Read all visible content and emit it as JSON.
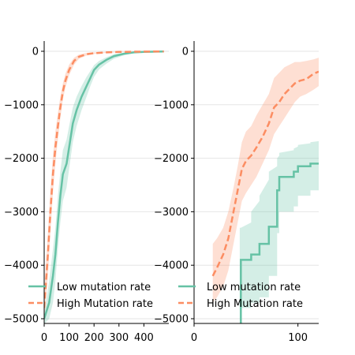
{
  "chart_data": [
    {
      "type": "line",
      "panel": "left",
      "xlim": [
        0,
        500
      ],
      "ylim": [
        -5100,
        150
      ],
      "xticks": [
        0,
        100,
        200,
        300,
        400
      ],
      "yticks": [
        0,
        -1000,
        -2000,
        -3000,
        -4000,
        -5000
      ],
      "xtick_labels": [
        "0",
        "100",
        "200",
        "300",
        "400"
      ],
      "ytick_labels": [
        "0",
        "−1000",
        "−2000",
        "−3000",
        "−4000",
        "−5000"
      ],
      "grid": true,
      "legend": {
        "position": "lower-left"
      },
      "series": [
        {
          "name": "Low mutation rate",
          "color": "#66c2a5",
          "style": "solid",
          "x": [
            0,
            20,
            35,
            45,
            55,
            65,
            75,
            90,
            100,
            115,
            130,
            150,
            170,
            185,
            200,
            220,
            250,
            280,
            320,
            360,
            400,
            480
          ],
          "y": [
            -5000,
            -4700,
            -4200,
            -3800,
            -3200,
            -2700,
            -2300,
            -2100,
            -1800,
            -1350,
            -1100,
            -850,
            -650,
            -500,
            -350,
            -250,
            -160,
            -90,
            -45,
            -20,
            -10,
            -5
          ],
          "band_lower": [
            -5100,
            -5000,
            -4700,
            -4300,
            -3700,
            -3200,
            -2800,
            -2550,
            -2200,
            -1700,
            -1400,
            -1100,
            -850,
            -650,
            -480,
            -340,
            -230,
            -140,
            -75,
            -35,
            -18,
            -10
          ],
          "band_upper": [
            -4900,
            -4300,
            -3700,
            -3300,
            -2700,
            -2250,
            -1850,
            -1650,
            -1400,
            -1050,
            -850,
            -650,
            -480,
            -370,
            -260,
            -180,
            -110,
            -55,
            -25,
            -10,
            -5,
            -2
          ]
        },
        {
          "name": "High Mutation rate",
          "color": "#fc8d62",
          "style": "dashed",
          "x": [
            0,
            15,
            25,
            35,
            45,
            55,
            65,
            75,
            85,
            100,
            120,
            140,
            170,
            200,
            250,
            300,
            400,
            480
          ],
          "y": [
            -4800,
            -3800,
            -3000,
            -2300,
            -1800,
            -1400,
            -1050,
            -750,
            -550,
            -350,
            -180,
            -100,
            -55,
            -35,
            -20,
            -12,
            -6,
            -3
          ],
          "band_lower": [
            -5000,
            -4200,
            -3400,
            -2650,
            -2100,
            -1650,
            -1250,
            -900,
            -680,
            -450,
            -250,
            -140,
            -80,
            -50,
            -30,
            -18,
            -9,
            -5
          ],
          "band_upper": [
            -4500,
            -3400,
            -2600,
            -1950,
            -1500,
            -1150,
            -850,
            -600,
            -420,
            -250,
            -120,
            -60,
            -30,
            -20,
            -12,
            -7,
            -3,
            -1
          ]
        }
      ]
    },
    {
      "type": "line",
      "panel": "right",
      "xlim": [
        0,
        120
      ],
      "ylim": [
        -5100,
        150
      ],
      "xticks": [
        0,
        100
      ],
      "yticks": [
        0,
        -1000,
        -2000,
        -3000,
        -4000,
        -5000
      ],
      "xtick_labels": [
        "0",
        "100"
      ],
      "ytick_labels": [
        "0",
        "−1000",
        "−2000",
        "−3000",
        "−4000",
        "−5000"
      ],
      "grid": true,
      "legend": {
        "position": "lower-left"
      },
      "series": [
        {
          "name": "Low mutation rate",
          "color": "#66c2a5",
          "style": "solid",
          "x": [
            44,
            45,
            45,
            55,
            55,
            63,
            63,
            72,
            72,
            80,
            80,
            82,
            82,
            96,
            96,
            100,
            100,
            112,
            112,
            120
          ],
          "y": [
            -5100,
            -5100,
            -3900,
            -3900,
            -3800,
            -3800,
            -3600,
            -3600,
            -3280,
            -3280,
            -2600,
            -2600,
            -2350,
            -2350,
            -2250,
            -2250,
            -2150,
            -2150,
            -2100,
            -2100
          ],
          "band_lower": [
            -5100,
            -5100,
            -4800,
            -4800,
            -4700,
            -4700,
            -4600,
            -4600,
            -4200,
            -4200,
            -3400,
            -3400,
            -3000,
            -3000,
            -2900,
            -2900,
            -2700,
            -2700,
            -2600,
            -2600
          ],
          "band_upper": [
            -3300,
            -3300,
            -3300,
            -3200,
            -3000,
            -2800,
            -2700,
            -2400,
            -2250,
            -2150,
            -2000,
            -1950,
            -1900,
            -1850,
            -1820,
            -1780,
            -1750,
            -1720,
            -1700,
            -1680
          ]
        },
        {
          "name": "High Mutation rate",
          "color": "#fc8d62",
          "style": "dashed",
          "x": [
            18,
            22,
            28,
            33,
            38,
            42,
            46,
            50,
            55,
            60,
            66,
            72,
            77,
            82,
            87,
            92,
            97,
            102,
            108,
            115,
            120
          ],
          "y": [
            -4200,
            -4050,
            -3800,
            -3500,
            -3000,
            -2600,
            -2200,
            -2050,
            -1950,
            -1800,
            -1600,
            -1350,
            -1050,
            -950,
            -800,
            -700,
            -600,
            -550,
            -520,
            -420,
            -380
          ],
          "band_lower": [
            -4700,
            -4600,
            -4400,
            -4100,
            -3600,
            -3200,
            -2800,
            -2650,
            -2500,
            -2350,
            -2100,
            -1850,
            -1550,
            -1400,
            -1250,
            -1100,
            -950,
            -850,
            -800,
            -720,
            -650
          ],
          "band_upper": [
            -3600,
            -3500,
            -3300,
            -3000,
            -2550,
            -2150,
            -1700,
            -1500,
            -1400,
            -1200,
            -1000,
            -800,
            -500,
            -400,
            -300,
            -250,
            -200,
            -200,
            -180,
            -150,
            -120
          ]
        }
      ]
    }
  ]
}
